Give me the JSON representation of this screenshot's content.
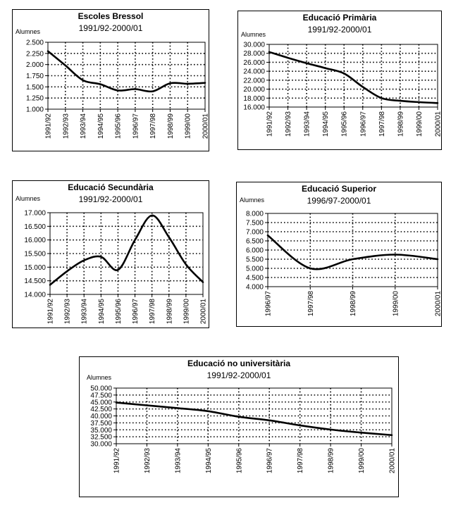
{
  "chart_data": [
    {
      "type": "line",
      "title": "Escoles Bressol",
      "subtitle": "1991/92-2000/01",
      "ylabel": "Alumnes",
      "categories": [
        "1991/92",
        "1992/93",
        "1993/94",
        "1994/95",
        "1995/96",
        "1996/97",
        "1997/98",
        "1998/99",
        "1999/00",
        "2000/01"
      ],
      "yticks": [
        "2.500",
        "2.250",
        "2.000",
        "1.750",
        "1.500",
        "1.250",
        "1.000"
      ],
      "ylim": [
        1000,
        2500
      ],
      "ystep": 250,
      "series": [
        {
          "values": [
            2300,
            1980,
            1650,
            1560,
            1420,
            1450,
            1400,
            1580,
            1570,
            1590
          ]
        }
      ]
    },
    {
      "type": "line",
      "title": "Educació Primària",
      "subtitle": "1991/92-2000/01",
      "ylabel": "Alumnes",
      "categories": [
        "1991/92",
        "1992/93",
        "1993/94",
        "1994/95",
        "1995/96",
        "1996/97",
        "1997/98",
        "1998/99",
        "1999/00",
        "2000/01"
      ],
      "yticks": [
        "30.000",
        "28.000",
        "26.000",
        "24.000",
        "22.000",
        "20.000",
        "18.000",
        "16.000"
      ],
      "ylim": [
        16000,
        30000
      ],
      "ystep": 2000,
      "series": [
        {
          "values": [
            28300,
            27000,
            25800,
            24700,
            23500,
            20500,
            18000,
            17400,
            17100,
            16900
          ]
        }
      ]
    },
    {
      "type": "line",
      "title": "Educació Secundària",
      "subtitle": "1991/92-2000/01",
      "ylabel": "Alumnes",
      "categories": [
        "1991/92",
        "1992/93",
        "1993/94",
        "1994/95",
        "1995/96",
        "1996/97",
        "1997/98",
        "1998/99",
        "1999/00",
        "2000/01"
      ],
      "yticks": [
        "17.000",
        "16.500",
        "16.000",
        "15.500",
        "15.000",
        "14.500",
        "14.000"
      ],
      "ylim": [
        14000,
        17000
      ],
      "ystep": 500,
      "series": [
        {
          "values": [
            14350,
            14850,
            15250,
            15380,
            14900,
            16000,
            16900,
            16100,
            15100,
            14450
          ]
        }
      ]
    },
    {
      "type": "line",
      "title": "Educació Superior",
      "subtitle": "1996/97-2000/01",
      "ylabel": "Alumnes",
      "categories": [
        "1996/97",
        "1997/98",
        "1998/99",
        "1999/00",
        "2000/01"
      ],
      "yticks": [
        "8.000",
        "7.500",
        "7.000",
        "6.500",
        "6.000",
        "5.500",
        "5.000",
        "4.500",
        "4.000"
      ],
      "ylim": [
        4000,
        8000
      ],
      "ystep": 500,
      "series": [
        {
          "values": [
            6800,
            5000,
            5500,
            5750,
            5500
          ]
        }
      ]
    },
    {
      "type": "line",
      "title": "Educació no universitària",
      "subtitle": "1991/92-2000/01",
      "ylabel": "Alumnes",
      "categories": [
        "1991/92",
        "1992/93",
        "1993/94",
        "1994/95",
        "1995/96",
        "1996/97",
        "1997/98",
        "1998/99",
        "1999/00",
        "2000/01"
      ],
      "yticks": [
        "50.000",
        "47.500",
        "45.000",
        "42.500",
        "40.000",
        "37.500",
        "35.000",
        "32.500",
        "30.000"
      ],
      "ylim": [
        30000,
        50000
      ],
      "ystep": 2500,
      "series": [
        {
          "values": [
            44800,
            43800,
            42800,
            41700,
            39700,
            38400,
            36600,
            35100,
            34000,
            33100
          ]
        }
      ]
    }
  ]
}
